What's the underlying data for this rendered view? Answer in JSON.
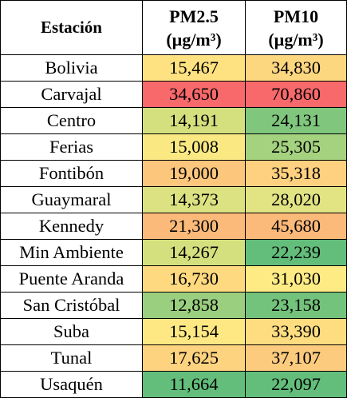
{
  "table": {
    "headers": {
      "station": "Estación",
      "pm25_line1": "PM2.5",
      "pm25_line2": "(µg/m³)",
      "pm10_line1": "PM10",
      "pm10_line2": "(µg/m³)"
    },
    "rows": [
      {
        "station": "Bolivia",
        "pm25": "15,467",
        "pm10": "34,830",
        "pm25_color": "#fee180",
        "pm10_color": "#fdd680"
      },
      {
        "station": "Carvajal",
        "pm25": "34,650",
        "pm10": "70,860",
        "pm25_color": "#f8696b",
        "pm10_color": "#f8696b"
      },
      {
        "station": "Centro",
        "pm25": "14,191",
        "pm10": "24,131",
        "pm25_color": "#d4e07e",
        "pm10_color": "#80c77d"
      },
      {
        "station": "Ferias",
        "pm25": "15,008",
        "pm10": "25,305",
        "pm25_color": "#fae983",
        "pm10_color": "#a5d27f"
      },
      {
        "station": "Fontibón",
        "pm25": "19,000",
        "pm10": "35,318",
        "pm25_color": "#fcc67c",
        "pm10_color": "#fdd17f"
      },
      {
        "station": "Guaymaral",
        "pm25": "14,373",
        "pm10": "28,020",
        "pm25_color": "#dce282",
        "pm10_color": "#e2e383"
      },
      {
        "station": "Kennedy",
        "pm25": "21,300",
        "pm10": "45,680",
        "pm25_color": "#fbb97a",
        "pm10_color": "#fbb97a"
      },
      {
        "station": "Min Ambiente",
        "pm25": "14,267",
        "pm10": "22,239",
        "pm25_color": "#d4e07e",
        "pm10_color": "#63be7b"
      },
      {
        "station": "Puente Aranda",
        "pm25": "16,730",
        "pm10": "31,030",
        "pm25_color": "#fed980",
        "pm10_color": "#feeb84"
      },
      {
        "station": "San Cristóbal",
        "pm25": "12,858",
        "pm10": "23,158",
        "pm25_color": "#9acf7f",
        "pm10_color": "#73c37c"
      },
      {
        "station": "Suba",
        "pm25": "15,154",
        "pm10": "33,390",
        "pm25_color": "#fde884",
        "pm10_color": "#fedd81"
      },
      {
        "station": "Tunal",
        "pm25": "17,625",
        "pm10": "37,107",
        "pm25_color": "#fdd37f",
        "pm10_color": "#fdcb7e"
      },
      {
        "station": "Usaquén",
        "pm25": "11,664",
        "pm10": "22,097",
        "pm25_color": "#63be7b",
        "pm10_color": "#63be7b"
      }
    ]
  }
}
